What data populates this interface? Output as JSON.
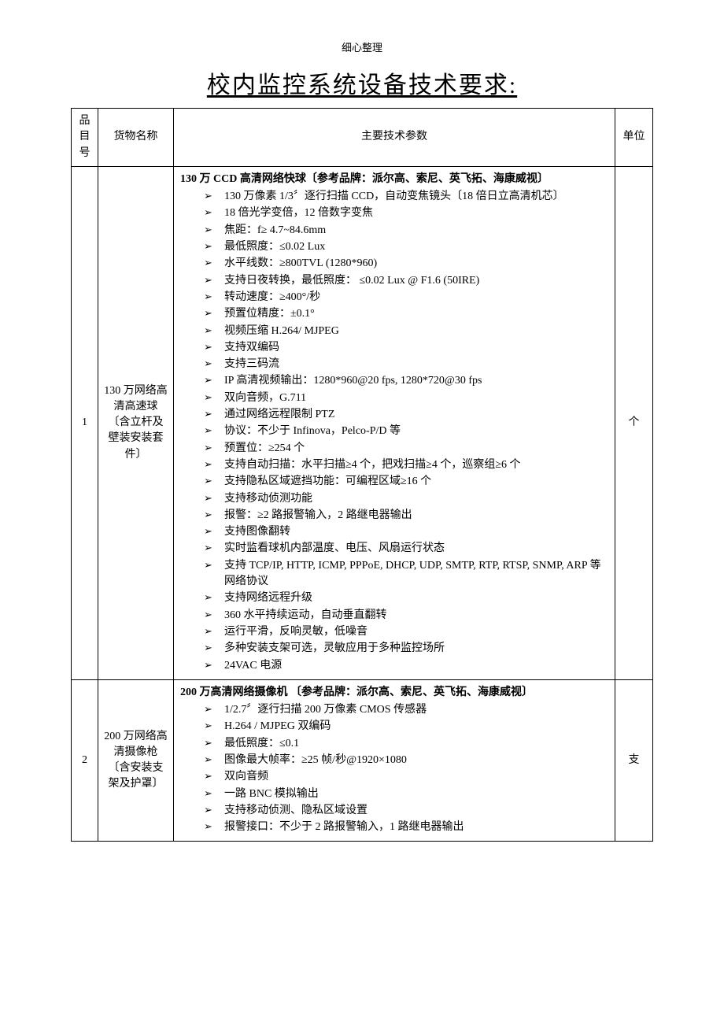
{
  "header_note": "细心整理",
  "title": "校内监控系统设备技术要求:",
  "columns": {
    "idx": "品目号",
    "name": "货物名称",
    "spec": "主要技术参数",
    "unit": "单位"
  },
  "rows": [
    {
      "idx": "1",
      "name": "130 万网络高清高速球〔含立杆及壁装安装套件〕",
      "unit": "个",
      "heading": "130 万 CCD 高清网络快球〔参考品牌：派尔高、索尼、英飞拓、海康威视〕",
      "items": [
        "130 万像素 1/3〞逐行扫描 CCD，自动变焦镜头〔18 倍日立高清机芯〕",
        "18 倍光学变倍，12 倍数字变焦",
        "焦距：f≥ 4.7~84.6mm",
        "最低照度：≤0.02 Lux",
        "水平线数：≥800TVL (1280*960)",
        "支持日夜转换，最低照度： ≤0.02 Lux @ F1.6 (50IRE)",
        "转动速度：≥400°/秒",
        "预置位精度：±0.1°",
        "视频压缩 H.264/ MJPEG",
        "支持双编码",
        "支持三码流",
        "IP 高清视频输出：1280*960@20 fps, 1280*720@30 fps",
        "双向音频，G.711",
        "通过网络远程限制 PTZ",
        "协议：不少于 Infinova，Pelco-P/D 等",
        "预置位：≥254 个",
        "支持自动扫描：水平扫描≥4 个，把戏扫描≥4 个，巡察组≥6 个",
        "支持隐私区域遮挡功能：可编程区域≥16 个",
        "支持移动侦测功能",
        "报警：≥2 路报警输入，2 路继电器输出",
        "支持图像翻转",
        "实时监看球机内部温度、电压、风扇运行状态",
        "支持 TCP/IP, HTTP, ICMP, PPPoE, DHCP, UDP, SMTP, RTP, RTSP, SNMP, ARP 等网络协议",
        "支持网络远程升级",
        "360 水平持续运动，自动垂直翻转",
        "运行平滑，反响灵敏，低噪音",
        "多种安装支架可选，灵敏应用于多种监控场所",
        "24VAC 电源"
      ]
    },
    {
      "idx": "2",
      "name": "200 万网络高清摄像枪〔含安装支架及护罩〕",
      "unit": "支",
      "heading": "200 万高清网络摄像机  〔参考品牌：派尔高、索尼、英飞拓、海康威视〕",
      "items": [
        "1/2.7〞逐行扫描 200 万像素 CMOS 传感器",
        "H.264 / MJPEG 双编码",
        "最低照度：≤0.1",
        "图像最大帧率：≥25 帧/秒@1920×1080",
        "双向音频",
        "一路 BNC 模拟输出",
        "支持移动侦测、隐私区域设置",
        "报警接口：不少于 2 路报警输入，1 路继电器输出"
      ]
    }
  ]
}
